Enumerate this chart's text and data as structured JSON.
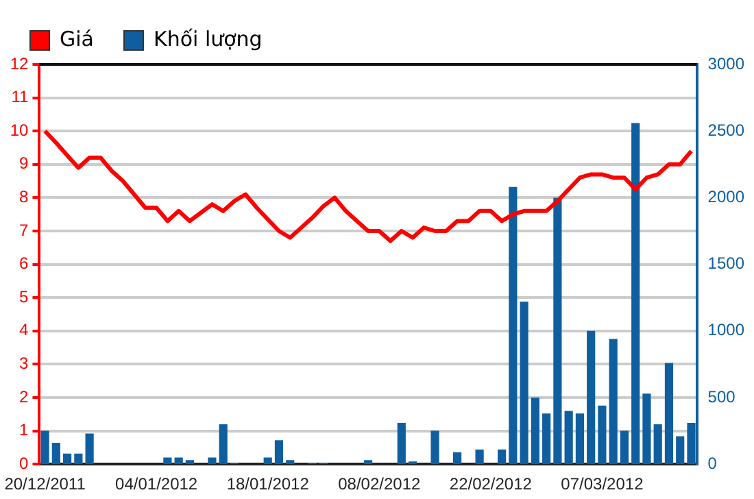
{
  "chart_data": {
    "type": "line",
    "categories": [
      "20/12/2011",
      null,
      null,
      null,
      null,
      null,
      null,
      null,
      null,
      null,
      "04/01/2012",
      null,
      null,
      null,
      null,
      null,
      null,
      null,
      null,
      null,
      "18/01/2012",
      null,
      null,
      null,
      null,
      null,
      null,
      null,
      null,
      null,
      "08/02/2012",
      null,
      null,
      null,
      null,
      null,
      null,
      null,
      null,
      null,
      "22/02/2012",
      null,
      null,
      null,
      null,
      null,
      null,
      null,
      null,
      null,
      "07/03/2012",
      null,
      null,
      null,
      null,
      null,
      null,
      null,
      null
    ],
    "series": [
      {
        "name": "Khối lượng",
        "type": "bar",
        "axis": "y2",
        "color": "#0f5fa0",
        "values": [
          250,
          160,
          80,
          80,
          230,
          null,
          null,
          null,
          null,
          null,
          null,
          50,
          50,
          30,
          null,
          50,
          300,
          10,
          null,
          null,
          50,
          180,
          30,
          null,
          10,
          10,
          null,
          null,
          null,
          30,
          null,
          null,
          310,
          20,
          null,
          250,
          null,
          90,
          null,
          110,
          null,
          110,
          2080,
          1220,
          500,
          380,
          2000,
          400,
          380,
          1000,
          440,
          940,
          250,
          2560,
          530,
          300,
          760,
          210,
          310
        ]
      },
      {
        "name": "Giá",
        "axis": "y",
        "color": "#ff0000",
        "values": [
          10.0,
          9.65,
          9.27,
          8.9,
          9.2,
          9.2,
          8.8,
          8.5,
          8.1,
          7.7,
          7.7,
          7.3,
          7.6,
          7.3,
          7.55,
          7.8,
          7.6,
          7.9,
          8.1,
          7.7,
          7.35,
          7.0,
          6.8,
          7.1,
          7.4,
          7.75,
          8.0,
          7.6,
          7.3,
          7.0,
          7.0,
          6.7,
          7.0,
          6.8,
          7.1,
          7.0,
          7.0,
          7.3,
          7.3,
          7.6,
          7.6,
          7.3,
          7.5,
          7.6,
          7.6,
          7.6,
          7.9,
          8.25,
          8.6,
          8.7,
          8.7,
          8.6,
          8.6,
          8.25,
          8.6,
          8.7,
          9.0,
          9.0,
          9.4
        ]
      }
    ],
    "ylim": [
      0,
      12
    ],
    "yticks": [
      0,
      1,
      2,
      3,
      4,
      5,
      6,
      7,
      8,
      9,
      10,
      11,
      12
    ],
    "y2lim": [
      0,
      3000
    ],
    "y2ticks": [
      0,
      500,
      1000,
      1500,
      2000,
      2500,
      3000
    ],
    "grid": "y",
    "legend": "top left",
    "marker": "none",
    "line_style": "solid"
  }
}
